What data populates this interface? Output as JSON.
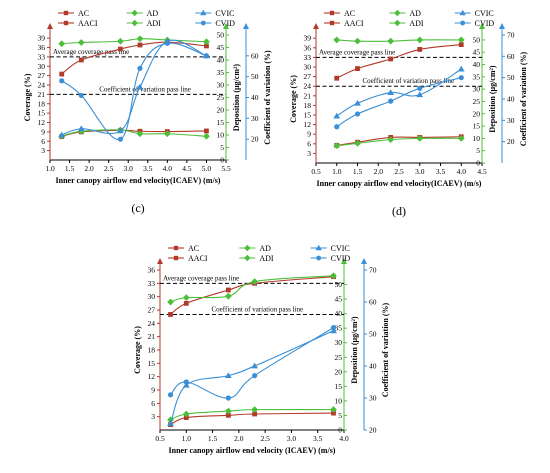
{
  "colors": {
    "AC": "#b23a2a",
    "AACI": "#b23a2a",
    "AD": "#4cbf3a",
    "ADI": "#4cbf3a",
    "CVIC": "#3a8fd6",
    "CVID": "#3a8fd6",
    "cov_axis": "#b23a2a",
    "dep_axis": "#4cbf3a",
    "cv_axis": "#3a8fd6"
  },
  "chart_data": [
    {
      "id": "c",
      "type": "line",
      "panel_label": "(c)",
      "xlabel": "Inner canopy airflow end velocity(ICAEV) (m/s)",
      "ylabel_left": "Coverage (%)",
      "ylabel_right1": "Deposition (μg/cm²)",
      "ylabel_right2": "Coefficient of variation (%)",
      "xlim": [
        1.0,
        5.5
      ],
      "xticks": [
        1.0,
        1.5,
        2.0,
        2.5,
        3.0,
        3.5,
        4.0,
        4.5,
        5.0,
        5.5
      ],
      "ylim_left": [
        0,
        40
      ],
      "yticks_left": [
        3,
        6,
        9,
        12,
        15,
        18,
        21,
        24,
        27,
        30,
        33,
        36,
        39
      ],
      "ylim_right1": [
        0,
        50
      ],
      "yticks_right1": [
        0,
        5,
        10,
        15,
        20,
        25,
        30,
        35,
        40,
        45,
        50
      ],
      "ylim_right2": [
        10,
        70
      ],
      "yticks_right2": [
        20,
        30,
        40,
        50,
        60
      ],
      "x": [
        1.3,
        1.8,
        2.8,
        3.3,
        4.0,
        5.0
      ],
      "series": [
        {
          "name": "AC",
          "axis": "left",
          "marker": "square",
          "values": [
            27.5,
            32,
            35.5,
            36.8,
            37.7,
            36.5
          ]
        },
        {
          "name": "AACI",
          "axis": "left",
          "marker": "square",
          "values": [
            7.5,
            9,
            9.5,
            9.2,
            9.1,
            9.3
          ]
        },
        {
          "name": "AD",
          "axis": "right1",
          "marker": "diamond",
          "values": [
            46.5,
            47,
            47.5,
            48.5,
            48,
            47.3
          ]
        },
        {
          "name": "ADI",
          "axis": "right1",
          "marker": "diamond",
          "values": [
            9.5,
            11.5,
            12,
            10.5,
            10.5,
            9.5
          ]
        },
        {
          "name": "CVIC",
          "axis": "right2",
          "marker": "triangle",
          "values": [
            22,
            25,
            24,
            45,
            67,
            60
          ]
        },
        {
          "name": "CVID",
          "axis": "right2",
          "marker": "circle",
          "values": [
            48,
            41,
            20,
            54,
            66,
            60
          ]
        }
      ],
      "ref_lines": [
        {
          "label": "Average coverage pass line",
          "axis": "left",
          "value": 33
        },
        {
          "label": "Coefficient of variation pass line",
          "axis": "left",
          "value": 21
        }
      ],
      "legend": [
        {
          "name": "AC"
        },
        {
          "name": "AD"
        },
        {
          "name": "CVIC"
        },
        {
          "name": "AACI"
        },
        {
          "name": "ADI"
        },
        {
          "name": "CVID"
        }
      ]
    },
    {
      "id": "d",
      "type": "line",
      "panel_label": "(d)",
      "xlabel": "Inner canopy airflow end velocity(ICAEV) (m/s)",
      "ylabel_left": "Coverage (%)",
      "ylabel_right1": "Deposition (μg/cm²)",
      "ylabel_right2": "Coefficient of variation (%)",
      "xlim": [
        0.5,
        4.5
      ],
      "xticks": [
        0.5,
        1.0,
        1.5,
        2.0,
        2.5,
        3.0,
        3.5,
        4.0,
        4.5
      ],
      "ylim_left": [
        0,
        40
      ],
      "yticks_left": [
        3,
        6,
        9,
        12,
        15,
        18,
        21,
        24,
        27,
        30,
        33,
        36,
        39
      ],
      "ylim_right1": [
        0,
        52
      ],
      "yticks_right1": [
        0,
        5,
        10,
        15,
        20,
        25,
        30,
        35,
        40,
        45,
        50
      ],
      "ylim_right2": [
        10,
        70
      ],
      "yticks_right2": [
        20,
        30,
        40,
        50,
        60,
        70
      ],
      "x": [
        1.0,
        1.5,
        2.3,
        3.0,
        4.0
      ],
      "series": [
        {
          "name": "AC",
          "axis": "left",
          "marker": "square",
          "values": [
            26.5,
            29.5,
            32.5,
            35.5,
            37
          ]
        },
        {
          "name": "AACI",
          "axis": "left",
          "marker": "square",
          "values": [
            5.5,
            6.5,
            8,
            8,
            8.2
          ]
        },
        {
          "name": "AD",
          "axis": "right1",
          "marker": "diamond",
          "values": [
            50,
            49.5,
            49.5,
            50,
            50
          ]
        },
        {
          "name": "ADI",
          "axis": "right1",
          "marker": "diamond",
          "values": [
            7,
            8,
            9.5,
            10,
            10
          ]
        },
        {
          "name": "CVIC",
          "axis": "right2",
          "marker": "triangle",
          "values": [
            32,
            38,
            43,
            42,
            54
          ]
        },
        {
          "name": "CVID",
          "axis": "right2",
          "marker": "circle",
          "values": [
            27,
            33,
            39,
            45,
            50
          ]
        }
      ],
      "ref_lines": [
        {
          "label": "Average coverage pass line",
          "axis": "left",
          "value": 33
        },
        {
          "label": "Coefficient of variation pass line",
          "axis": "left",
          "value": 24
        }
      ],
      "legend": [
        {
          "name": "AC"
        },
        {
          "name": "AD"
        },
        {
          "name": "CVIC"
        },
        {
          "name": "AACI"
        },
        {
          "name": "ADI"
        },
        {
          "name": "CVID"
        }
      ]
    },
    {
      "id": "e",
      "type": "line",
      "panel_label": "(e)",
      "xlabel": "Inner canopy airflow end velocity (ICAEV) (m/s)",
      "ylabel_left": "Coverage (%)",
      "ylabel_right1": "Deposition (μg/cm²)",
      "ylabel_right2": "Coefficient of variation (%)",
      "xlim": [
        0.5,
        4.0
      ],
      "xticks": [
        0.5,
        1.0,
        1.5,
        2.0,
        2.5,
        3.0,
        3.5,
        4.0
      ],
      "ylim_left": [
        0,
        36
      ],
      "yticks_left": [
        3,
        6,
        9,
        12,
        15,
        18,
        21,
        24,
        27,
        30,
        33,
        36
      ],
      "ylim_right1": [
        0,
        55
      ],
      "yticks_right1": [
        0,
        5,
        10,
        15,
        20,
        25,
        30,
        35,
        40,
        45,
        50
      ],
      "ylim_right2": [
        20,
        70
      ],
      "yticks_right2": [
        20,
        30,
        40,
        50,
        60,
        70
      ],
      "x": [
        0.7,
        1.0,
        1.8,
        2.3,
        3.8
      ],
      "series": [
        {
          "name": "AC",
          "axis": "left",
          "marker": "square",
          "values": [
            26,
            28.5,
            31.5,
            33,
            34.5
          ]
        },
        {
          "name": "AACI",
          "axis": "left",
          "marker": "square",
          "values": [
            1.2,
            2.8,
            3.3,
            3.6,
            3.8
          ]
        },
        {
          "name": "AD",
          "axis": "right1",
          "marker": "diamond",
          "values": [
            44,
            45.5,
            46,
            51,
            53
          ]
        },
        {
          "name": "ADI",
          "axis": "right1",
          "marker": "diamond",
          "values": [
            3.5,
            5.5,
            6.5,
            7,
            7
          ]
        },
        {
          "name": "CVIC",
          "axis": "right2",
          "marker": "triangle",
          "values": [
            22,
            34,
            37,
            40,
            51
          ]
        },
        {
          "name": "CVID",
          "axis": "right2",
          "marker": "circle",
          "values": [
            31,
            35,
            30,
            37,
            52
          ]
        }
      ],
      "ref_lines": [
        {
          "label": "Average coverage pass line",
          "axis": "left",
          "value": 33
        },
        {
          "label": "Coefficient of variation pass line",
          "axis": "left",
          "value": 26
        }
      ],
      "legend": [
        {
          "name": "AC"
        },
        {
          "name": "AD"
        },
        {
          "name": "CVIC"
        },
        {
          "name": "AACI"
        },
        {
          "name": "ADI"
        },
        {
          "name": "CVID"
        }
      ]
    }
  ]
}
